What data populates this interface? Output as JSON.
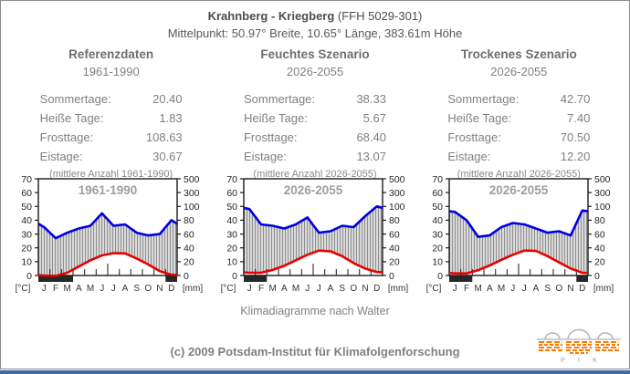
{
  "header": {
    "title_bold": "Krahnberg - Kriegberg",
    "title_rest": " (FFH 5029-301)",
    "subtitle": "Mittelpunkt: 50.97° Breite, 10.65° Länge, 383.61m Höhe"
  },
  "panels": [
    {
      "heading": "Referenzdaten",
      "period": "1961-1990",
      "stats": [
        {
          "label": "Sommertage:",
          "value": "20.40"
        },
        {
          "label": "Heiße Tage:",
          "value": "1.83"
        },
        {
          "label": "Frosttage:",
          "value": "108.63"
        },
        {
          "label": "Eistage:",
          "value": "30.67"
        }
      ],
      "footnote": "(mittlere Anzahl 1961-1990)"
    },
    {
      "heading": "Feuchtes Szenario",
      "period": "2026-2055",
      "stats": [
        {
          "label": "Sommertage:",
          "value": "38.33"
        },
        {
          "label": "Heiße Tage:",
          "value": "5.67"
        },
        {
          "label": "Frosttage:",
          "value": "68.40"
        },
        {
          "label": "Eistage:",
          "value": "13.07"
        }
      ],
      "footnote": "(mittlere Anzahl 2026-2055)"
    },
    {
      "heading": "Trockenes Szenario",
      "period": "2026-2055",
      "stats": [
        {
          "label": "Sommertage:",
          "value": "42.70"
        },
        {
          "label": "Heiße Tage:",
          "value": "7.40"
        },
        {
          "label": "Frosttage:",
          "value": "70.50"
        },
        {
          "label": "Eistage:",
          "value": "12.20"
        }
      ],
      "footnote": "(mittlere Anzahl 2026-2055)"
    }
  ],
  "chart_data": [
    {
      "type": "line",
      "variant": "walter-climate-diagram",
      "title": "1961-1990",
      "months": [
        "J",
        "F",
        "M",
        "A",
        "M",
        "J",
        "J",
        "A",
        "S",
        "O",
        "N",
        "D"
      ],
      "left_axis": {
        "label": "[°C]",
        "ticks": [
          70,
          60,
          50,
          40,
          30,
          20,
          10,
          0
        ],
        "range": [
          0,
          70
        ]
      },
      "right_axis": {
        "label": "[mm]",
        "ticks": [
          500,
          300,
          100,
          80,
          60,
          40,
          20,
          0
        ],
        "note": "Walter scale, nonlinear above 100 mm"
      },
      "series": [
        {
          "name": "Niederschlag (mm)",
          "color": "#0000e0",
          "values": [
            70,
            54,
            62,
            68,
            72,
            90,
            72,
            74,
            62,
            58,
            60,
            80
          ]
        },
        {
          "name": "Temperatur (°C)",
          "color": "#e80000",
          "values": [
            0.0,
            -0.3,
            2.0,
            6.5,
            11.0,
            14.5,
            16.2,
            16.0,
            12.3,
            8.0,
            3.2,
            0.5
          ]
        }
      ],
      "frost_month_ranges": [
        [
          0,
          2
        ],
        [
          11,
          11
        ]
      ],
      "grid": false,
      "legend": "none"
    },
    {
      "type": "line",
      "variant": "walter-climate-diagram",
      "title": "2026-2055",
      "months": [
        "J",
        "F",
        "M",
        "A",
        "M",
        "J",
        "J",
        "A",
        "S",
        "O",
        "N",
        "D"
      ],
      "left_axis": {
        "label": "[°C]",
        "ticks": [
          70,
          60,
          50,
          40,
          30,
          20,
          10,
          0
        ],
        "range": [
          0,
          70
        ]
      },
      "right_axis": {
        "label": "[mm]",
        "ticks": [
          500,
          300,
          100,
          80,
          60,
          40,
          20,
          0
        ],
        "note": "Walter scale, nonlinear above 100 mm"
      },
      "series": [
        {
          "name": "Niederschlag (mm)",
          "color": "#0000e0",
          "values": [
            96,
            74,
            72,
            68,
            74,
            84,
            62,
            64,
            72,
            70,
            86,
            100
          ]
        },
        {
          "name": "Temperatur (°C)",
          "color": "#e80000",
          "values": [
            2.0,
            2.0,
            4.0,
            7.0,
            11.0,
            15.0,
            18.0,
            17.5,
            14.0,
            9.0,
            5.0,
            2.5
          ]
        }
      ],
      "frost_month_ranges": [
        [
          0,
          1
        ]
      ],
      "grid": false,
      "legend": "none"
    },
    {
      "type": "line",
      "variant": "walter-climate-diagram",
      "title": "2026-2055",
      "months": [
        "J",
        "F",
        "M",
        "A",
        "M",
        "J",
        "J",
        "A",
        "S",
        "O",
        "N",
        "D"
      ],
      "left_axis": {
        "label": "[°C]",
        "ticks": [
          70,
          60,
          50,
          40,
          30,
          20,
          10,
          0
        ],
        "range": [
          0,
          70
        ]
      },
      "right_axis": {
        "label": "[mm]",
        "ticks": [
          500,
          300,
          100,
          80,
          60,
          40,
          20,
          0
        ],
        "note": "Walter scale, nonlinear above 100 mm"
      },
      "series": [
        {
          "name": "Niederschlag (mm)",
          "color": "#0000e0",
          "values": [
            92,
            80,
            56,
            58,
            70,
            76,
            74,
            68,
            62,
            64,
            58,
            94
          ]
        },
        {
          "name": "Temperatur (°C)",
          "color": "#e80000",
          "values": [
            1.5,
            1.5,
            3.8,
            7.2,
            11.3,
            15.0,
            18.0,
            17.8,
            14.0,
            9.5,
            5.0,
            2.0
          ]
        }
      ],
      "frost_month_ranges": [
        [
          0,
          1
        ],
        [
          11,
          11
        ]
      ],
      "grid": false,
      "legend": "none"
    }
  ],
  "caption": "Klimadiagramme nach Walter",
  "footer": {
    "copyright": "(c) 2009 Potsdam-Institut für Klimafolgenforschung",
    "logo_text": "P I K"
  },
  "colors": {
    "precipitation_blue": "#0000e0",
    "temperature_red": "#e80000",
    "frost_bar_black": "#262626",
    "hatch_fill": "#d9d9d9",
    "hatch_line": "#8f8f8f",
    "border_gray": "#8c8c8c",
    "bottom_bar_blue": "#4066ab",
    "logo_orange": "#ff7a00"
  }
}
